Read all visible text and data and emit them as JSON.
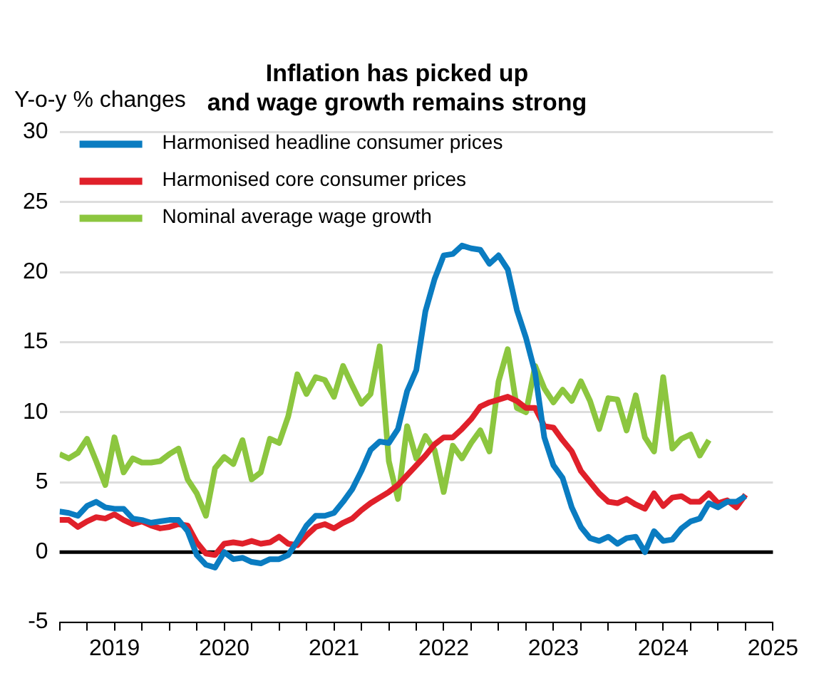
{
  "chart_data": {
    "type": "line",
    "title": "Inflation has picked up\nand wage growth remains strong",
    "ylabel": "Y-o-y % changes",
    "ylim": [
      -5,
      30
    ],
    "yticks": [
      -5,
      0,
      5,
      10,
      15,
      20,
      25,
      30
    ],
    "grid": "y",
    "legend": "top left",
    "xlim": [
      "2019-01",
      "2025-07"
    ],
    "xticks": [
      {
        "value": "2019-01",
        "label": null
      },
      {
        "value": "2019-04",
        "label": null
      },
      {
        "value": "2019-07",
        "label": "2019"
      },
      {
        "value": "2019-10",
        "label": null
      },
      {
        "value": "2020-01",
        "label": null
      },
      {
        "value": "2020-04",
        "label": null
      },
      {
        "value": "2020-07",
        "label": "2020"
      },
      {
        "value": "2020-10",
        "label": null
      },
      {
        "value": "2021-01",
        "label": null
      },
      {
        "value": "2021-04",
        "label": null
      },
      {
        "value": "2021-07",
        "label": "2021"
      },
      {
        "value": "2021-10",
        "label": null
      },
      {
        "value": "2022-01",
        "label": null
      },
      {
        "value": "2022-04",
        "label": null
      },
      {
        "value": "2022-07",
        "label": "2022"
      },
      {
        "value": "2022-10",
        "label": null
      },
      {
        "value": "2023-01",
        "label": null
      },
      {
        "value": "2023-04",
        "label": null
      },
      {
        "value": "2023-07",
        "label": "2023"
      },
      {
        "value": "2023-10",
        "label": null
      },
      {
        "value": "2024-01",
        "label": null
      },
      {
        "value": "2024-04",
        "label": null
      },
      {
        "value": "2024-07",
        "label": "2024"
      },
      {
        "value": "2024-10",
        "label": null
      },
      {
        "value": "2025-01",
        "label": null
      },
      {
        "value": "2025-04",
        "label": null
      },
      {
        "value": "2025-07",
        "label": "2025"
      }
    ],
    "x": [
      "2019-01",
      "2019-02",
      "2019-03",
      "2019-04",
      "2019-05",
      "2019-06",
      "2019-07",
      "2019-08",
      "2019-09",
      "2019-10",
      "2019-11",
      "2019-12",
      "2020-01",
      "2020-02",
      "2020-03",
      "2020-04",
      "2020-05",
      "2020-06",
      "2020-07",
      "2020-08",
      "2020-09",
      "2020-10",
      "2020-11",
      "2020-12",
      "2021-01",
      "2021-02",
      "2021-03",
      "2021-04",
      "2021-05",
      "2021-06",
      "2021-07",
      "2021-08",
      "2021-09",
      "2021-10",
      "2021-11",
      "2021-12",
      "2022-01",
      "2022-02",
      "2022-03",
      "2022-04",
      "2022-05",
      "2022-06",
      "2022-07",
      "2022-08",
      "2022-09",
      "2022-10",
      "2022-11",
      "2022-12",
      "2023-01",
      "2023-02",
      "2023-03",
      "2023-04",
      "2023-05",
      "2023-06",
      "2023-07",
      "2023-08",
      "2023-09",
      "2023-10",
      "2023-11",
      "2023-12",
      "2024-01",
      "2024-02",
      "2024-03",
      "2024-04",
      "2024-05",
      "2024-06",
      "2024-07",
      "2024-08",
      "2024-09",
      "2024-10",
      "2024-11",
      "2024-12",
      "2025-01",
      "2025-02",
      "2025-03",
      "2025-04"
    ],
    "ref_lines": [
      {
        "axis": "y",
        "value": 0,
        "color": "#000000"
      }
    ],
    "series": [
      {
        "name": "Harmonised headline consumer prices",
        "color": "#0a7cc1",
        "values": [
          2.9,
          2.8,
          2.6,
          3.3,
          3.6,
          3.2,
          3.1,
          3.1,
          2.4,
          2.3,
          2.1,
          2.2,
          2.3,
          2.3,
          1.5,
          -0.2,
          -0.9,
          -1.1,
          0,
          -0.5,
          -0.4,
          -0.7,
          -0.8,
          -0.5,
          -0.5,
          -0.2,
          0.8,
          1.9,
          2.6,
          2.6,
          2.8,
          3.6,
          4.5,
          5.8,
          7.3,
          7.9,
          7.8,
          8.8,
          11.5,
          13,
          17.2,
          19.5,
          21.2,
          21.3,
          21.9,
          21.7,
          21.6,
          20.6,
          21.2,
          20.2,
          17.3,
          15.3,
          12.8,
          8.2,
          6.2,
          5.3,
          3.2,
          1.8,
          1.0,
          0.8,
          1.1,
          0.6,
          1.0,
          1.1,
          0,
          1.5,
          0.8,
          0.9,
          1.7,
          2.2,
          2.4,
          3.5,
          3.2,
          3.6,
          3.6,
          4.0
        ]
      },
      {
        "name": "Harmonised core consumer prices",
        "color": "#e0202a",
        "values": [
          2.3,
          2.3,
          1.8,
          2.2,
          2.5,
          2.4,
          2.7,
          2.3,
          2.0,
          2.2,
          1.9,
          1.7,
          1.8,
          2.0,
          1.9,
          0.7,
          -0.1,
          -0.2,
          0.6,
          0.7,
          0.6,
          0.8,
          0.6,
          0.7,
          1.1,
          0.6,
          0.5,
          1.2,
          1.8,
          2.0,
          1.7,
          2.1,
          2.4,
          3.0,
          3.5,
          3.9,
          4.3,
          4.8,
          5.5,
          6.2,
          6.9,
          7.7,
          8.2,
          8.2,
          8.8,
          9.5,
          10.4,
          10.7,
          10.9,
          11.1,
          10.8,
          10.3,
          10.3,
          9.0,
          8.9,
          8.0,
          7.2,
          5.8,
          5.0,
          4.2,
          3.6,
          3.5,
          3.8,
          3.4,
          3.1,
          4.2,
          3.3,
          3.9,
          4.0,
          3.6,
          3.6,
          4.2,
          3.5,
          3.7,
          3.2,
          4.1
        ]
      },
      {
        "name": "Nominal average wage growth",
        "color": "#8cc63f",
        "values": [
          7.0,
          6.7,
          7.1,
          8.1,
          6.5,
          4.8,
          8.2,
          5.7,
          6.7,
          6.4,
          6.4,
          6.5,
          7.0,
          7.4,
          5.2,
          4.2,
          2.6,
          6.0,
          6.8,
          6.3,
          8.0,
          5.2,
          5.7,
          8.1,
          7.8,
          9.7,
          12.7,
          11.3,
          12.5,
          12.3,
          11.1,
          13.3,
          11.9,
          10.6,
          11.3,
          14.7,
          6.5,
          3.8,
          9.0,
          6.7,
          8.3,
          7.3,
          4.3,
          7.6,
          6.7,
          7.8,
          8.7,
          7.2,
          12.2,
          14.5,
          10.3,
          10.0,
          13.3,
          11.7,
          10.7,
          11.6,
          10.8,
          12.2,
          10.8,
          8.8,
          11.0,
          10.9,
          8.7,
          11.2,
          8.2,
          7.2,
          12.5,
          7.4,
          8.1,
          8.4,
          6.9,
          8.0,
          null,
          null,
          null,
          null
        ]
      }
    ]
  }
}
